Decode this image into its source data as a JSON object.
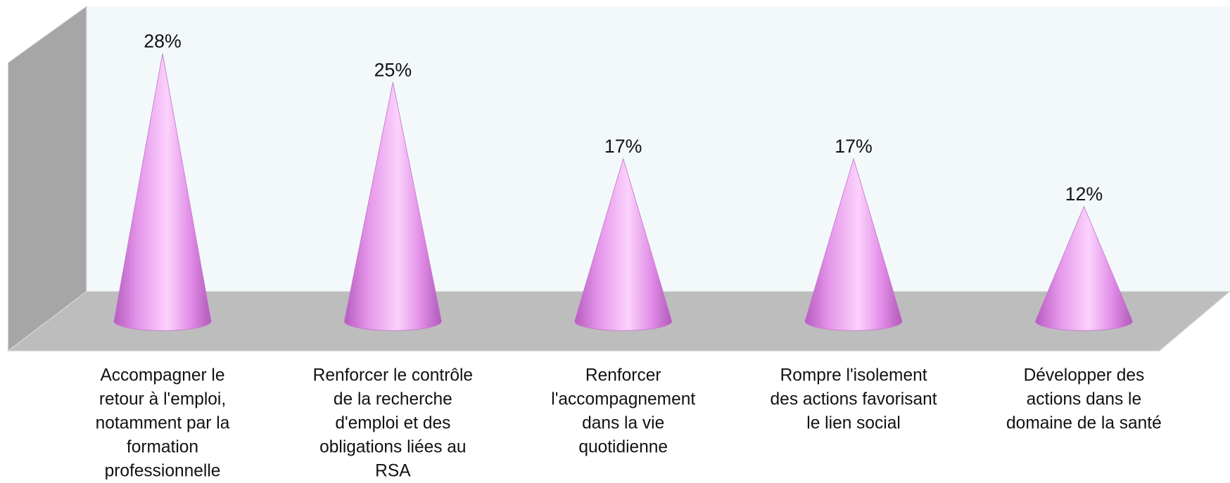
{
  "chart_data": {
    "type": "cone",
    "categories": [
      [
        "Accompagner le",
        "retour à l'emploi,",
        "notamment par la",
        "formation",
        "professionnelle"
      ],
      [
        "Renforcer le contrôle",
        "de la recherche",
        "d'emploi et des",
        "obligations liées au",
        "RSA"
      ],
      [
        "Renforcer",
        "l'accompagnement",
        "dans la vie",
        "quotidienne"
      ],
      [
        "Rompre l'isolement",
        "des actions favorisant",
        "le lien social"
      ],
      [
        "Développer des",
        "actions dans le",
        "domaine de la santé"
      ]
    ],
    "values": [
      28,
      25,
      17,
      17,
      12
    ],
    "value_labels": [
      "28%",
      "25%",
      "17%",
      "17%",
      "12%"
    ],
    "color": "#e08ae6"
  }
}
